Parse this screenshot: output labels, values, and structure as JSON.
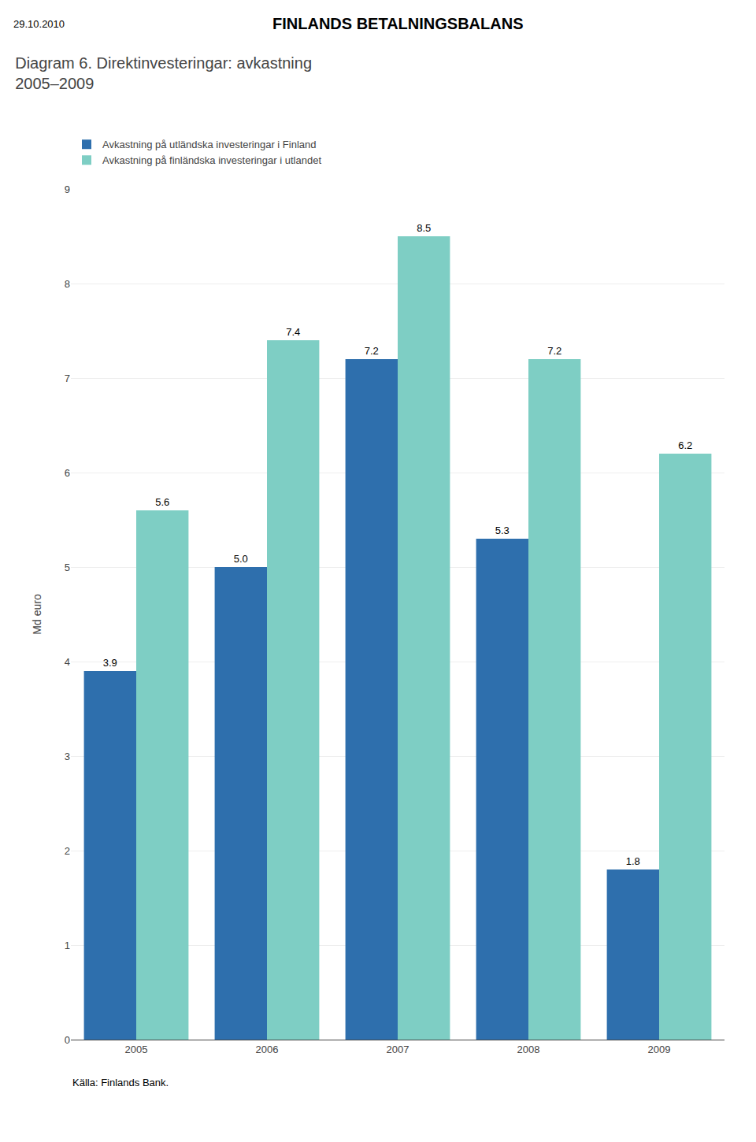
{
  "chart_data": {
    "type": "bar",
    "title": "Diagram 6. Direktinvesteringar: avkastning",
    "subtitle": "2005–2009",
    "ylabel": "Md euro",
    "annotations": [
      "FINLANDS BETALNINGSBALANS",
      "29.10.2010",
      "Källa: Finlands Bank."
    ],
    "categories": [
      "2005",
      "2006",
      "2007",
      "2008",
      "2009"
    ],
    "series": [
      {
        "name": "Avkastning på utländska investeringar i Finland",
        "color": "#2E6FAD",
        "values": [
          3.9,
          5.0,
          7.2,
          5.3,
          1.8
        ],
        "value_labels": [
          "3.9",
          "5.0",
          "7.2",
          "5.3",
          "1.8"
        ]
      },
      {
        "name": "Avkastning på finländska investeringar i utlandet",
        "color": "#7ECEC4",
        "values": [
          5.6,
          7.4,
          8.5,
          7.2,
          6.2
        ]
      }
    ],
    "ylim": [
      0,
      9
    ],
    "yticks": [
      0,
      1,
      2,
      3,
      4,
      5,
      6,
      7,
      8,
      9
    ],
    "grid": true,
    "data_labels": true,
    "legend": "upper left"
  }
}
